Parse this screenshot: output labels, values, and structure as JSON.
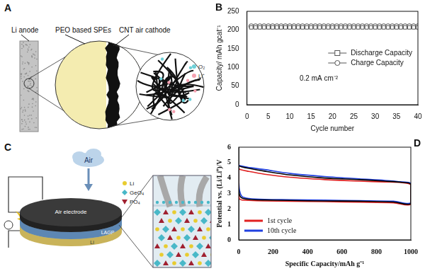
{
  "diagrams": [
    {
      "panel": "A",
      "labels": [
        "Li anode",
        "PEO based SPEs",
        "CNT air cathode"
      ],
      "legend_items": [
        "O₂",
        "Li⁺"
      ]
    },
    {
      "panel": "C",
      "labels": [
        "Air",
        "Air electrode",
        "LAGP",
        "Li"
      ],
      "legend_items": [
        "Li",
        "GeO₄",
        "PO₄"
      ]
    }
  ],
  "chart_data": [
    {
      "panel": "B",
      "type": "scatter",
      "xlabel": "Cycle number",
      "ylabel": "Capacity/ mAh gcat⁻¹",
      "annotations": [
        "0.2 mA cm⁻²"
      ],
      "x": [
        1,
        2,
        3,
        4,
        5,
        6,
        7,
        8,
        9,
        10,
        11,
        12,
        13,
        14,
        15,
        16,
        17,
        18,
        19,
        20,
        21,
        22,
        23,
        24,
        25,
        26,
        27,
        28,
        29,
        30,
        31,
        32,
        33,
        34,
        35,
        36,
        37,
        38,
        39,
        40
      ],
      "series": [
        {
          "name": "Discharge Capacity",
          "color": "#555555",
          "marker": "square",
          "values": [
            207,
            207,
            207,
            207,
            207,
            207,
            207,
            207,
            207,
            207,
            207,
            207,
            207,
            207,
            207,
            207,
            207,
            207,
            207,
            207,
            207,
            207,
            207,
            207,
            207,
            207,
            207,
            207,
            207,
            207,
            207,
            207,
            207,
            207,
            207,
            207,
            207,
            207,
            207,
            207
          ]
        },
        {
          "name": "Charge Capacity",
          "color": "#555555",
          "marker": "circle",
          "values": [
            210,
            210,
            210,
            210,
            210,
            210,
            210,
            210,
            210,
            210,
            210,
            210,
            210,
            210,
            210,
            210,
            210,
            210,
            210,
            210,
            210,
            210,
            210,
            210,
            210,
            210,
            210,
            210,
            210,
            210,
            210,
            210,
            210,
            210,
            210,
            210,
            210,
            210,
            210,
            210
          ]
        }
      ],
      "xlim": [
        0,
        40
      ],
      "xticks": [
        0,
        5,
        10,
        15,
        20,
        25,
        30,
        35,
        40
      ],
      "ylim": [
        0,
        250
      ],
      "yticks": [
        0,
        50,
        100,
        150,
        200,
        250
      ],
      "grid": false,
      "legend": "center right"
    },
    {
      "panel": "D",
      "type": "line",
      "xlabel": "Specific Capacity/mAh g⁻¹",
      "ylabel": "Potential vs. (Li/Li⁺)/V",
      "series": [
        {
          "color": "#000000",
          "x": [
            0,
            5,
            20,
            60,
            150,
            300,
            500,
            700,
            900,
            1000,
            1000,
            950,
            850,
            700,
            500,
            300,
            150,
            50,
            10,
            0,
            0
          ],
          "values": [
            3.4,
            2.9,
            2.7,
            2.62,
            2.58,
            2.55,
            2.52,
            2.5,
            2.45,
            2.35,
            3.6,
            3.72,
            3.8,
            3.9,
            4.0,
            4.2,
            4.45,
            4.65,
            4.75,
            4.78,
            3.4
          ]
        },
        {
          "name": "1st cycle",
          "color": "#e02020",
          "x": [
            0,
            5,
            20,
            60,
            150,
            300,
            500,
            700,
            900,
            1000,
            1000,
            950,
            850,
            700,
            500,
            300,
            150,
            50,
            10,
            0,
            0
          ],
          "values": [
            2.9,
            2.65,
            2.58,
            2.55,
            2.52,
            2.5,
            2.47,
            2.44,
            2.4,
            2.3,
            3.55,
            3.7,
            3.75,
            3.8,
            3.9,
            4.05,
            4.25,
            4.45,
            4.55,
            4.6,
            2.9
          ]
        },
        {
          "name": "10th cycle",
          "color": "#2040e0",
          "x": [
            0,
            5,
            20,
            60,
            150,
            300,
            500,
            700,
            900,
            1000,
            1000,
            950,
            850,
            700,
            500,
            300,
            150,
            50,
            10,
            0,
            0
          ],
          "values": [
            3.9,
            3.2,
            2.8,
            2.68,
            2.62,
            2.6,
            2.57,
            2.54,
            2.5,
            2.4,
            3.65,
            3.75,
            3.85,
            3.95,
            4.1,
            4.3,
            4.55,
            4.7,
            4.8,
            4.82,
            3.9
          ]
        }
      ],
      "xlim": [
        0,
        1000
      ],
      "xticks": [
        0,
        200,
        400,
        600,
        800,
        1000
      ],
      "ylim": [
        0,
        6
      ],
      "yticks": [
        0,
        1,
        2,
        3,
        4,
        5,
        6
      ],
      "grid": false,
      "legend": "lower left"
    }
  ]
}
